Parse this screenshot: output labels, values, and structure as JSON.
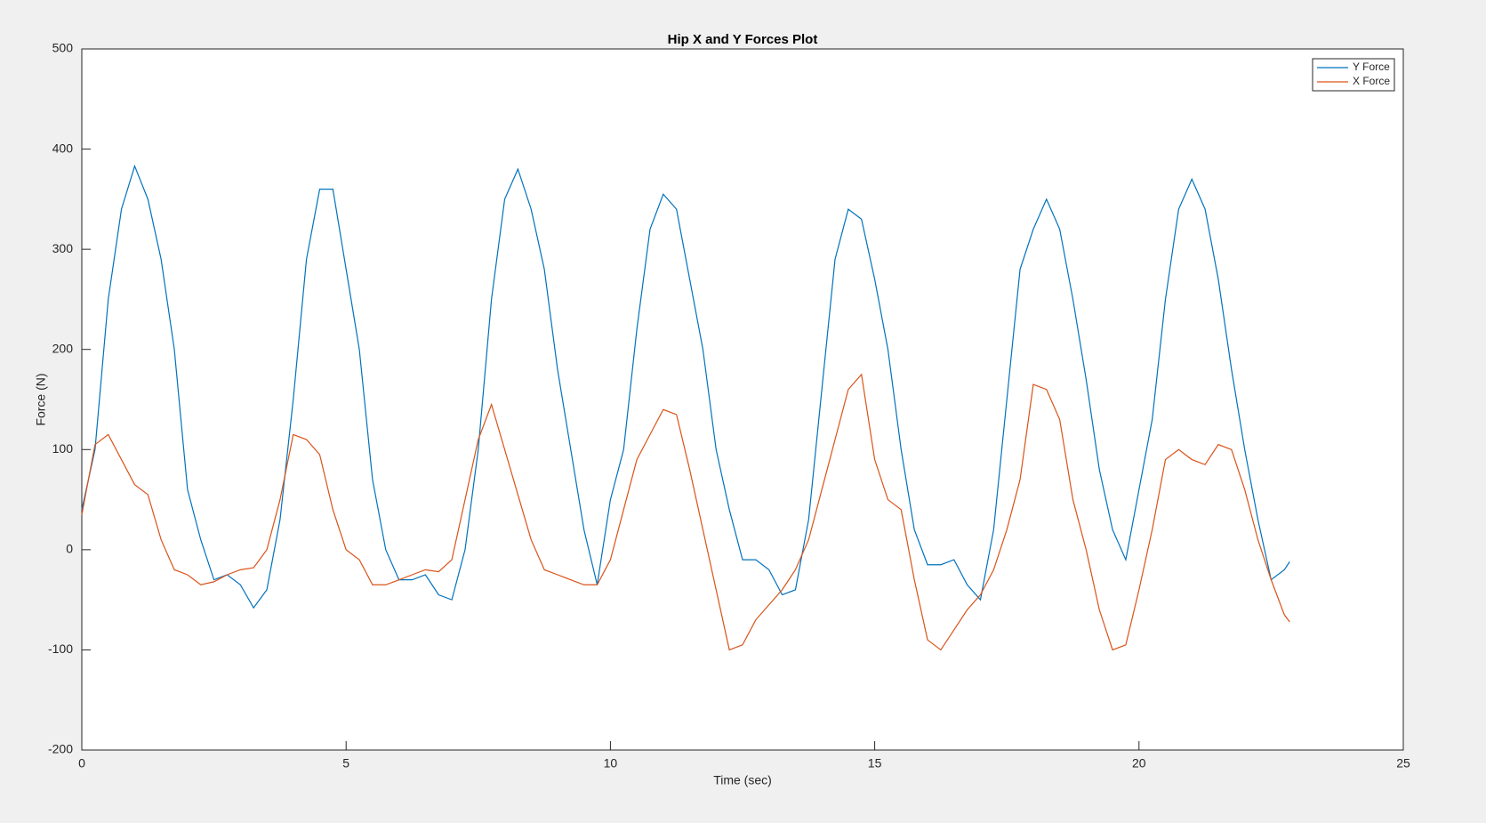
{
  "chart_data": {
    "type": "line",
    "title": "Hip X and Y Forces Plot",
    "xlabel": "Time (sec)",
    "ylabel": "Force (N)",
    "x": [
      0,
      0.25,
      0.5,
      0.75,
      1,
      1.25,
      1.5,
      1.75,
      2,
      2.25,
      2.5,
      2.75,
      3,
      3.25,
      3.5,
      3.75,
      4,
      4.25,
      4.5,
      4.75,
      5,
      5.25,
      5.5,
      5.75,
      6,
      6.25,
      6.5,
      6.75,
      7,
      7.25,
      7.5,
      7.75,
      8,
      8.25,
      8.5,
      8.75,
      9,
      9.25,
      9.5,
      9.75,
      10,
      10.25,
      10.5,
      10.75,
      11,
      11.25,
      11.5,
      11.75,
      12,
      12.25,
      12.5,
      12.75,
      13,
      13.25,
      13.5,
      13.75,
      14,
      14.25,
      14.5,
      14.75,
      15,
      15.25,
      15.5,
      15.75,
      16,
      16.25,
      16.5,
      16.75,
      17,
      17.25,
      17.5,
      17.75,
      18,
      18.25,
      18.5,
      18.75,
      19,
      19.25,
      19.5,
      19.75,
      20,
      20.25,
      20.5,
      20.75,
      21,
      21.25,
      21.5,
      21.75,
      22,
      22.25,
      22.5,
      22.75,
      22.85
    ],
    "series": [
      {
        "name": "Y Force",
        "color": "#0072bd",
        "values": [
          40,
          100,
          250,
          340,
          383,
          350,
          290,
          200,
          60,
          10,
          -30,
          -25,
          -35,
          -58,
          -40,
          30,
          150,
          290,
          360,
          360,
          280,
          200,
          70,
          0,
          -30,
          -30,
          -25,
          -45,
          -50,
          0,
          100,
          250,
          350,
          380,
          340,
          280,
          180,
          100,
          20,
          -35,
          50,
          100,
          220,
          320,
          355,
          340,
          270,
          200,
          100,
          40,
          -10,
          -10,
          -20,
          -45,
          -40,
          30,
          160,
          290,
          340,
          330,
          270,
          200,
          100,
          20,
          -15,
          -15,
          -10,
          -35,
          -50,
          20,
          150,
          280,
          320,
          350,
          320,
          250,
          170,
          80,
          20,
          -10,
          60,
          130,
          250,
          340,
          370,
          340,
          270,
          180,
          100,
          30,
          -30,
          -20,
          -12
        ]
      },
      {
        "name": "X Force",
        "color": "#d95319",
        "values": [
          35,
          105,
          115,
          90,
          65,
          55,
          10,
          -20,
          -25,
          -35,
          -32,
          -25,
          -20,
          -18,
          0,
          50,
          115,
          110,
          95,
          40,
          0,
          -10,
          -35,
          -35,
          -30,
          -25,
          -20,
          -22,
          -10,
          50,
          110,
          145,
          100,
          55,
          10,
          -20,
          -25,
          -30,
          -35,
          -35,
          -10,
          40,
          90,
          115,
          140,
          135,
          80,
          20,
          -40,
          -100,
          -95,
          -70,
          -55,
          -40,
          -20,
          10,
          60,
          110,
          160,
          175,
          90,
          50,
          40,
          -30,
          -90,
          -100,
          -80,
          -60,
          -45,
          -20,
          20,
          70,
          165,
          160,
          130,
          50,
          0,
          -60,
          -100,
          -95,
          -40,
          20,
          90,
          100,
          90,
          85,
          105,
          100,
          60,
          10,
          -30,
          -65,
          -72
        ]
      }
    ],
    "xlim": [
      0,
      25
    ],
    "xticks": [
      0,
      5,
      10,
      15,
      20,
      25
    ],
    "ylim": [
      -200,
      500
    ],
    "yticks": [
      -200,
      -100,
      0,
      100,
      200,
      300,
      400,
      500
    ],
    "legend": "northeast",
    "grid": false
  }
}
